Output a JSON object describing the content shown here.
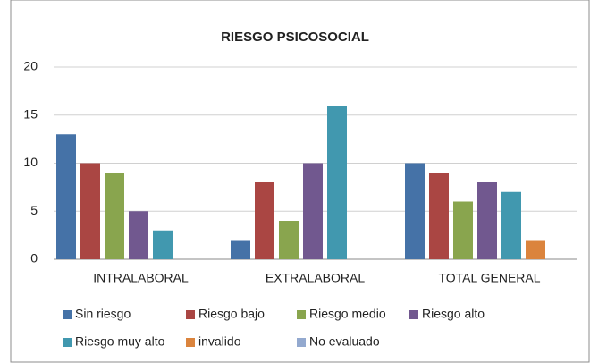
{
  "chart_data": {
    "type": "bar",
    "title": "RIESGO PSICOSOCIAL",
    "categories": [
      "INTRALABORAL",
      "EXTRALABORAL",
      "TOTAL GENERAL"
    ],
    "series": [
      {
        "name": "Sin riesgo",
        "color": "#4572a7",
        "values": [
          13,
          2,
          10
        ]
      },
      {
        "name": "Riesgo bajo",
        "color": "#aa4643",
        "values": [
          10,
          8,
          9
        ]
      },
      {
        "name": "Riesgo medio",
        "color": "#89a54e",
        "values": [
          9,
          4,
          6
        ]
      },
      {
        "name": "Riesgo alto",
        "color": "#71588f",
        "values": [
          5,
          10,
          8
        ]
      },
      {
        "name": "Riesgo muy alto",
        "color": "#4198af",
        "values": [
          3,
          16,
          7
        ]
      },
      {
        "name": "invalido",
        "color": "#db843d",
        "values": [
          0,
          0,
          2
        ]
      },
      {
        "name": "No evaluado",
        "color": "#93a9cf",
        "values": [
          0,
          0,
          0
        ]
      }
    ],
    "ylim": [
      0,
      20
    ],
    "yticks": [
      0,
      5,
      10,
      15,
      20
    ],
    "grid": true,
    "legend": "bottom"
  }
}
